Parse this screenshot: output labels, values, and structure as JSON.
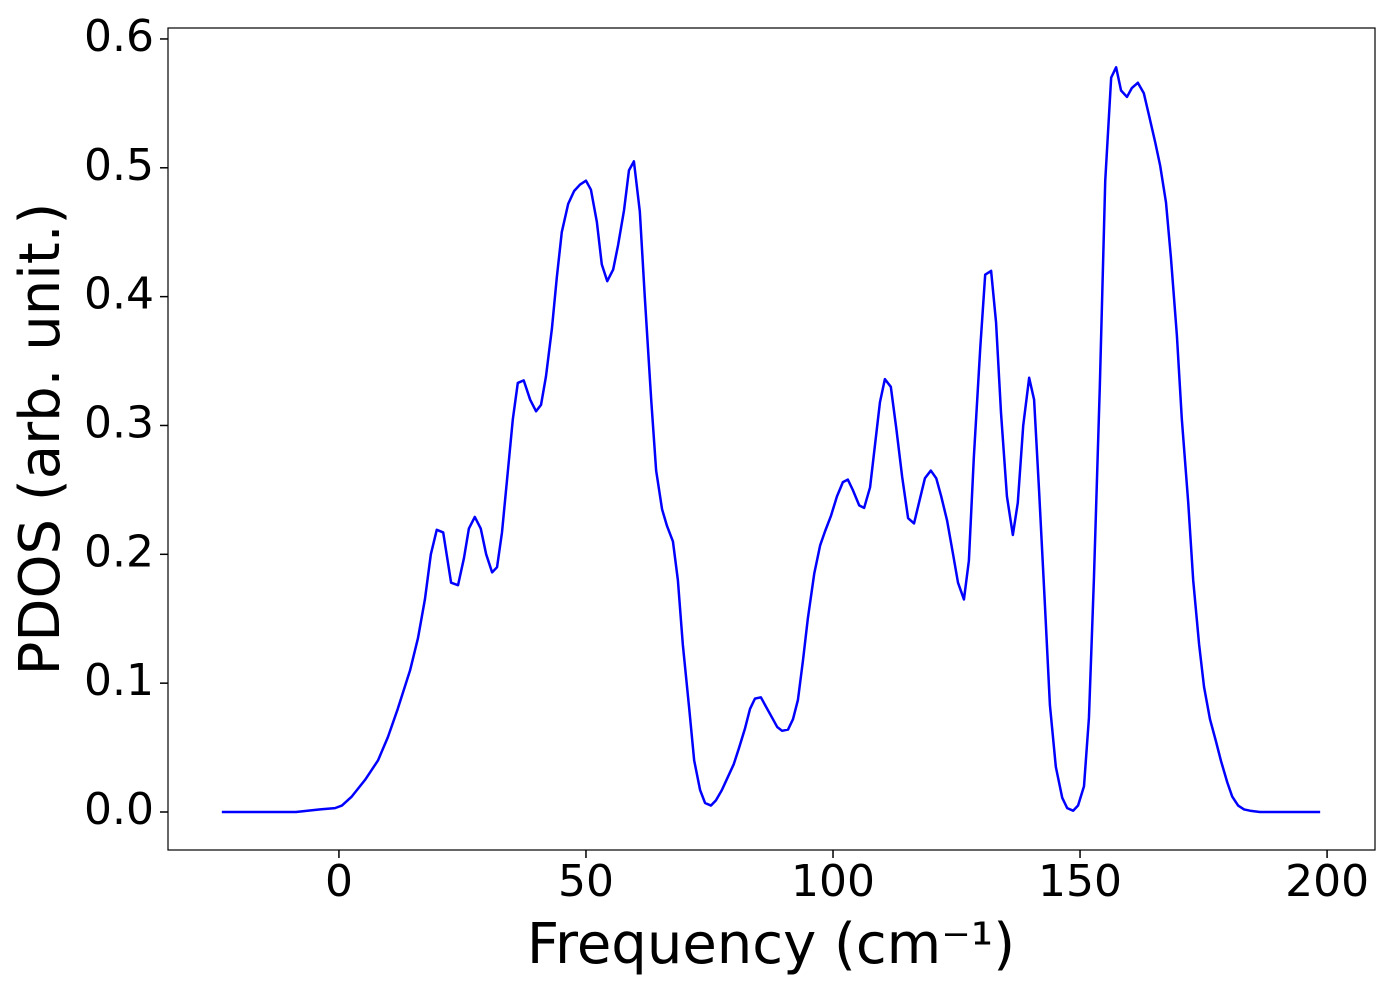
{
  "chart_data": {
    "type": "line",
    "xlabel": "Frequency (cm⁻¹)",
    "ylabel": "PDOS (arb. unit.)",
    "xlim": [
      -34.6,
      209.7
    ],
    "ylim": [
      -0.0295,
      0.6085
    ],
    "xticks": [
      0,
      50,
      100,
      150,
      200
    ],
    "yticks": [
      {
        "value": 0,
        "label": "0.0"
      },
      0.1,
      0.2,
      0.3,
      0.4,
      0.5,
      0.6
    ],
    "series": [
      {
        "color": "#0000ff",
        "x": [
          -23.7,
          -8.7,
          -3.8,
          -0.8,
          0.6,
          2.6,
          5.3,
          7.9,
          9.9,
          11.9,
          14.4,
          16.0,
          17.4,
          18.6,
          19.8,
          21.1,
          22.7,
          24.1,
          25.3,
          26.3,
          27.5,
          28.7,
          29.8,
          31.0,
          32.0,
          33.0,
          34.2,
          35.2,
          36.2,
          37.4,
          38.7,
          39.9,
          40.9,
          41.9,
          43.1,
          44.1,
          45.1,
          46.4,
          47.6,
          48.8,
          50.0,
          51.0,
          52.2,
          53.2,
          54.3,
          55.5,
          56.5,
          57.7,
          58.7,
          59.7,
          60.9,
          61.9,
          63.2,
          64.2,
          65.4,
          66.4,
          67.6,
          68.6,
          69.6,
          70.9,
          71.9,
          73.1,
          74.1,
          75.3,
          76.3,
          77.5,
          78.7,
          79.9,
          81.0,
          82.2,
          83.2,
          84.2,
          85.4,
          86.4,
          87.7,
          88.7,
          89.7,
          90.9,
          91.9,
          92.9,
          93.9,
          94.9,
          96.2,
          97.4,
          98.4,
          99.6,
          100.8,
          102.0,
          103.0,
          104.0,
          105.3,
          106.3,
          107.5,
          108.5,
          109.5,
          110.5,
          111.7,
          112.8,
          114.0,
          115.2,
          116.4,
          117.4,
          118.6,
          119.8,
          120.9,
          121.9,
          123.1,
          124.3,
          125.3,
          126.5,
          127.5,
          128.5,
          129.8,
          130.8,
          132.0,
          133.0,
          134.0,
          135.2,
          136.4,
          137.4,
          138.5,
          139.7,
          140.7,
          141.7,
          142.9,
          143.9,
          145.1,
          146.4,
          147.4,
          148.6,
          149.6,
          150.8,
          151.8,
          152.8,
          154.0,
          155.1,
          156.3,
          157.3,
          158.3,
          159.5,
          160.5,
          161.7,
          162.9,
          164.0,
          165.2,
          166.2,
          167.4,
          168.4,
          169.6,
          170.6,
          171.9,
          172.9,
          174.1,
          175.1,
          176.3,
          177.5,
          178.5,
          179.8,
          180.8,
          182.0,
          183.2,
          184.4,
          186.4,
          198.6
        ],
        "values": [
          0,
          0,
          0.002,
          0.003,
          0.005,
          0.012,
          0.025,
          0.04,
          0.058,
          0.08,
          0.11,
          0.135,
          0.165,
          0.2,
          0.219,
          0.217,
          0.178,
          0.176,
          0.197,
          0.22,
          0.229,
          0.22,
          0.2,
          0.186,
          0.19,
          0.217,
          0.265,
          0.305,
          0.333,
          0.335,
          0.32,
          0.311,
          0.316,
          0.338,
          0.375,
          0.415,
          0.45,
          0.472,
          0.482,
          0.487,
          0.49,
          0.483,
          0.458,
          0.425,
          0.412,
          0.421,
          0.44,
          0.467,
          0.498,
          0.505,
          0.466,
          0.4,
          0.32,
          0.265,
          0.235,
          0.222,
          0.21,
          0.18,
          0.13,
          0.08,
          0.04,
          0.017,
          0.007,
          0.005,
          0.009,
          0.017,
          0.027,
          0.037,
          0.05,
          0.065,
          0.08,
          0.088,
          0.089,
          0.082,
          0.073,
          0.066,
          0.063,
          0.064,
          0.072,
          0.087,
          0.117,
          0.15,
          0.185,
          0.207,
          0.218,
          0.23,
          0.245,
          0.256,
          0.258,
          0.25,
          0.238,
          0.236,
          0.252,
          0.285,
          0.318,
          0.336,
          0.33,
          0.298,
          0.26,
          0.228,
          0.224,
          0.24,
          0.259,
          0.265,
          0.259,
          0.245,
          0.226,
          0.2,
          0.178,
          0.165,
          0.195,
          0.275,
          0.36,
          0.417,
          0.42,
          0.38,
          0.31,
          0.245,
          0.215,
          0.24,
          0.3,
          0.337,
          0.32,
          0.25,
          0.16,
          0.083,
          0.035,
          0.011,
          0.003,
          0.001,
          0.005,
          0.02,
          0.073,
          0.18,
          0.33,
          0.49,
          0.57,
          0.578,
          0.56,
          0.555,
          0.562,
          0.566,
          0.558,
          0.54,
          0.52,
          0.502,
          0.473,
          0.43,
          0.37,
          0.305,
          0.24,
          0.18,
          0.13,
          0.097,
          0.072,
          0.055,
          0.04,
          0.023,
          0.012,
          0.005,
          0.002,
          0.001,
          0,
          0
        ]
      }
    ]
  }
}
